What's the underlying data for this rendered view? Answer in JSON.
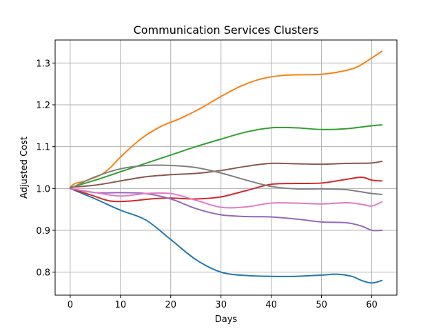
{
  "chart_data": {
    "type": "line",
    "title": "Communication Services Clusters",
    "xlabel": "Days",
    "ylabel": "Adjusted Cost",
    "xlim": [
      -3,
      65
    ],
    "ylim": [
      0.745,
      1.355
    ],
    "xticks": [
      0,
      10,
      20,
      30,
      40,
      50,
      60
    ],
    "yticks": [
      0.8,
      0.9,
      1.0,
      1.1,
      1.2,
      1.3
    ],
    "ytick_labels": [
      "0.8",
      "0.9",
      "1.0",
      "1.1",
      "1.2",
      "1.3"
    ],
    "grid": true,
    "series": [
      {
        "color": "#1f77b4",
        "points": [
          [
            0,
            1.0
          ],
          [
            5,
            0.975
          ],
          [
            10,
            0.948
          ],
          [
            15,
            0.925
          ],
          [
            20,
            0.878
          ],
          [
            25,
            0.83
          ],
          [
            30,
            0.8
          ],
          [
            35,
            0.792
          ],
          [
            40,
            0.79
          ],
          [
            45,
            0.79
          ],
          [
            50,
            0.793
          ],
          [
            53,
            0.795
          ],
          [
            56,
            0.79
          ],
          [
            58,
            0.78
          ],
          [
            60,
            0.774
          ],
          [
            62,
            0.78
          ]
        ]
      },
      {
        "color": "#ff7f0e",
        "points": [
          [
            0,
            1.003
          ],
          [
            1,
            1.012
          ],
          [
            3,
            1.018
          ],
          [
            6,
            1.032
          ],
          [
            8,
            1.05
          ],
          [
            10,
            1.075
          ],
          [
            14,
            1.118
          ],
          [
            18,
            1.148
          ],
          [
            22,
            1.168
          ],
          [
            26,
            1.192
          ],
          [
            30,
            1.22
          ],
          [
            34,
            1.245
          ],
          [
            38,
            1.262
          ],
          [
            42,
            1.27
          ],
          [
            46,
            1.272
          ],
          [
            50,
            1.273
          ],
          [
            54,
            1.28
          ],
          [
            57,
            1.29
          ],
          [
            60,
            1.312
          ],
          [
            62,
            1.328
          ]
        ]
      },
      {
        "color": "#2ca02c",
        "points": [
          [
            0,
            1.002
          ],
          [
            5,
            1.02
          ],
          [
            10,
            1.04
          ],
          [
            15,
            1.06
          ],
          [
            20,
            1.08
          ],
          [
            25,
            1.1
          ],
          [
            30,
            1.118
          ],
          [
            35,
            1.135
          ],
          [
            40,
            1.145
          ],
          [
            45,
            1.145
          ],
          [
            50,
            1.141
          ],
          [
            55,
            1.143
          ],
          [
            60,
            1.15
          ],
          [
            62,
            1.152
          ]
        ]
      },
      {
        "color": "#d62728",
        "points": [
          [
            0,
            1.0
          ],
          [
            4,
            0.985
          ],
          [
            8,
            0.97
          ],
          [
            12,
            0.97
          ],
          [
            16,
            0.975
          ],
          [
            20,
            0.977
          ],
          [
            25,
            0.975
          ],
          [
            30,
            0.98
          ],
          [
            35,
            0.995
          ],
          [
            40,
            1.01
          ],
          [
            45,
            1.012
          ],
          [
            50,
            1.013
          ],
          [
            55,
            1.022
          ],
          [
            58,
            1.027
          ],
          [
            60,
            1.02
          ],
          [
            62,
            1.018
          ]
        ]
      },
      {
        "color": "#9467bd",
        "points": [
          [
            0,
            1.0
          ],
          [
            5,
            0.99
          ],
          [
            10,
            0.99
          ],
          [
            15,
            0.988
          ],
          [
            20,
            0.975
          ],
          [
            25,
            0.952
          ],
          [
            30,
            0.937
          ],
          [
            35,
            0.933
          ],
          [
            40,
            0.932
          ],
          [
            45,
            0.927
          ],
          [
            50,
            0.92
          ],
          [
            55,
            0.918
          ],
          [
            58,
            0.91
          ],
          [
            60,
            0.9
          ],
          [
            62,
            0.9
          ]
        ]
      },
      {
        "color": "#8c564b",
        "points": [
          [
            0,
            1.003
          ],
          [
            5,
            1.008
          ],
          [
            10,
            1.018
          ],
          [
            15,
            1.028
          ],
          [
            20,
            1.033
          ],
          [
            25,
            1.036
          ],
          [
            30,
            1.043
          ],
          [
            35,
            1.053
          ],
          [
            40,
            1.06
          ],
          [
            45,
            1.059
          ],
          [
            50,
            1.058
          ],
          [
            55,
            1.06
          ],
          [
            60,
            1.061
          ],
          [
            62,
            1.065
          ]
        ]
      },
      {
        "color": "#e377c2",
        "points": [
          [
            0,
            1.0
          ],
          [
            5,
            0.99
          ],
          [
            10,
            0.982
          ],
          [
            15,
            0.988
          ],
          [
            20,
            0.988
          ],
          [
            25,
            0.972
          ],
          [
            30,
            0.955
          ],
          [
            35,
            0.956
          ],
          [
            40,
            0.965
          ],
          [
            45,
            0.965
          ],
          [
            50,
            0.963
          ],
          [
            55,
            0.966
          ],
          [
            58,
            0.962
          ],
          [
            60,
            0.958
          ],
          [
            62,
            0.968
          ]
        ]
      },
      {
        "color": "#7f7f7f",
        "points": [
          [
            0,
            1.0
          ],
          [
            5,
            1.028
          ],
          [
            10,
            1.047
          ],
          [
            15,
            1.055
          ],
          [
            20,
            1.055
          ],
          [
            25,
            1.05
          ],
          [
            30,
            1.037
          ],
          [
            35,
            1.02
          ],
          [
            40,
            1.005
          ],
          [
            45,
            0.999
          ],
          [
            50,
            0.999
          ],
          [
            55,
            0.997
          ],
          [
            60,
            0.988
          ],
          [
            62,
            0.986
          ]
        ]
      }
    ]
  }
}
